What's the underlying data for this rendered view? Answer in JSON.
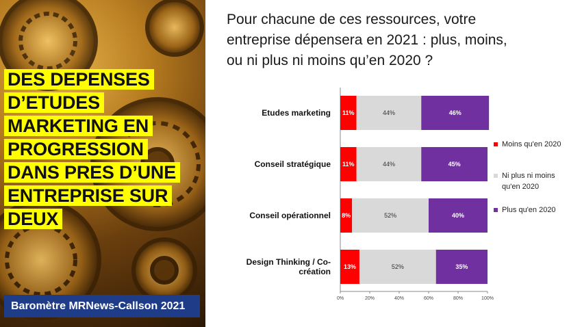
{
  "headline": {
    "lines": [
      "DES DEPENSES",
      "D’ETUDES",
      "MARKETING EN",
      "PROGRESSION",
      "DANS PRES D’UNE",
      "ENTREPRISE SUR",
      "DEUX"
    ],
    "background_color": "#ffff00"
  },
  "badge": {
    "text": "Baromètre MRNews-Callson 2021",
    "background_color": "#1f3c88"
  },
  "question": {
    "lines": [
      "Pour chacune de ces ressources, votre",
      "entreprise dépensera en 2021 : plus, moins,",
      "ou ni plus ni moins qu’en 2020 ?"
    ]
  },
  "chart_data": {
    "type": "bar",
    "orientation": "horizontal",
    "stacked": true,
    "categories": [
      [
        "Etudes marketing"
      ],
      [
        "Conseil stratégique"
      ],
      [
        "Conseil opérationnel"
      ],
      [
        "Design Thinking / Co-",
        "création"
      ]
    ],
    "series": [
      {
        "name": "Moins qu'en 2020",
        "legend_lines": [
          "Moins qu'en 2020"
        ],
        "color": "#ff0000",
        "label_color": "#ffffff",
        "values": [
          11,
          11,
          8,
          13
        ],
        "labels": [
          "11%",
          "11%",
          "8%",
          "13%"
        ]
      },
      {
        "name": "Ni plus ni moins qu'en 2020",
        "legend_lines": [
          "Ni plus ni moins",
          "qu'en 2020"
        ],
        "color": "#d9d9d9",
        "label_color": "#333333",
        "values": [
          44,
          44,
          52,
          52
        ],
        "labels": [
          "44%",
          "44%",
          "52%",
          "52%"
        ]
      },
      {
        "name": "Plus qu'en 2020",
        "legend_lines": [
          "Plus qu'en 2020"
        ],
        "color": "#7030a0",
        "label_color": "#ffffff",
        "values": [
          46,
          45,
          40,
          35
        ],
        "labels": [
          "46%",
          "45%",
          "40%",
          "35%"
        ]
      }
    ],
    "xlim": [
      0,
      100
    ],
    "x_ticks": [
      "0%",
      "20%",
      "40%",
      "60%",
      "80%",
      "100%"
    ],
    "legend_position": "right",
    "grid": false
  }
}
